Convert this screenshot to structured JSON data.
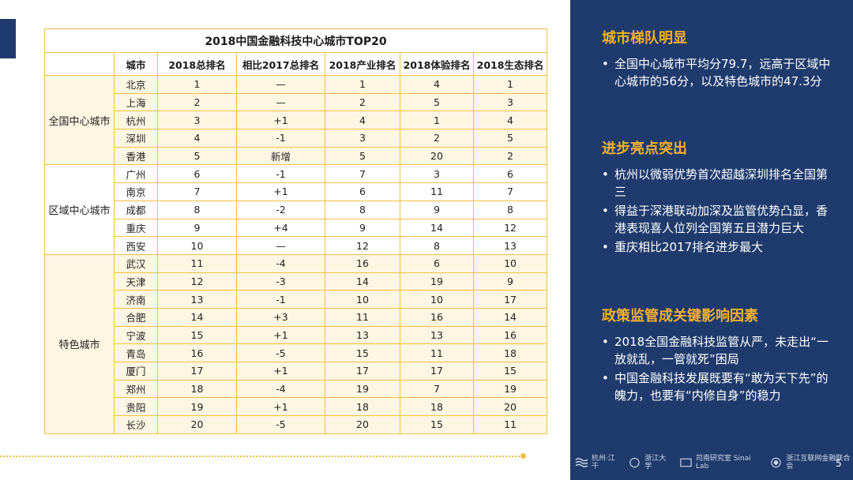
{
  "table": {
    "title": "2018中国金融科技中心城市TOP20",
    "headers": [
      "城市",
      "2018总排名",
      "相比2017总排名",
      "2018产业排名",
      "2018体验排名",
      "2018生态排名"
    ],
    "groups": [
      {
        "name": "全国中心城市",
        "rows": [
          [
            "北京",
            "1",
            "—",
            "1",
            "4",
            "1"
          ],
          [
            "上海",
            "2",
            "—",
            "2",
            "5",
            "3"
          ],
          [
            "杭州",
            "3",
            "+1",
            "4",
            "1",
            "4"
          ],
          [
            "深圳",
            "4",
            "-1",
            "3",
            "2",
            "5"
          ],
          [
            "香港",
            "5",
            "新增",
            "5",
            "20",
            "2"
          ]
        ]
      },
      {
        "name": "区域中心城市",
        "rows": [
          [
            "广州",
            "6",
            "-1",
            "7",
            "3",
            "6"
          ],
          [
            "南京",
            "7",
            "+1",
            "6",
            "11",
            "7"
          ],
          [
            "成都",
            "8",
            "-2",
            "8",
            "9",
            "8"
          ],
          [
            "重庆",
            "9",
            "+4",
            "9",
            "14",
            "12"
          ],
          [
            "西安",
            "10",
            "—",
            "12",
            "8",
            "13"
          ]
        ]
      },
      {
        "name": "特色城市",
        "rows": [
          [
            "武汉",
            "11",
            "-4",
            "16",
            "6",
            "10"
          ],
          [
            "天津",
            "12",
            "-3",
            "14",
            "19",
            "9"
          ],
          [
            "济南",
            "13",
            "-1",
            "10",
            "10",
            "17"
          ],
          [
            "合肥",
            "14",
            "+3",
            "11",
            "16",
            "14"
          ],
          [
            "宁波",
            "15",
            "+1",
            "13",
            "13",
            "16"
          ],
          [
            "青岛",
            "16",
            "-5",
            "15",
            "11",
            "18"
          ],
          [
            "厦门",
            "17",
            "+1",
            "17",
            "17",
            "15"
          ],
          [
            "郑州",
            "18",
            "-4",
            "19",
            "7",
            "19"
          ],
          [
            "贵阳",
            "19",
            "+1",
            "18",
            "18",
            "20"
          ],
          [
            "长沙",
            "20",
            "-5",
            "20",
            "15",
            "11"
          ]
        ]
      }
    ]
  },
  "sidebar": {
    "sections": [
      {
        "title": "城市梯队明显",
        "bullets": [
          "全国中心城市平均分79.7，远高于区域中心城市的56分，以及特色城市的47.3分"
        ]
      },
      {
        "title": "进步亮点突出",
        "bullets": [
          "杭州以微弱优势首次超越深圳排名全国第三",
          "得益于深港联动加深及监管优势凸显，香港表现喜人位列全国第五且潜力巨大",
          "重庆相比2017排名进步最大"
        ]
      },
      {
        "title": "政策监管成关键影响因素",
        "bullets": [
          "2018全国金融科技监管从严，未走出“一放就乱，一管就死”困局",
          "中国金融科技发展既要有“敢为天下先”的魄力，也要有“内修自身”的稳力"
        ]
      }
    ]
  },
  "footer": {
    "logos": [
      {
        "icon": "hangzhou-jianggan-logo-icon",
        "text": "杭州·江干"
      },
      {
        "icon": "zhejiang-university-logo-icon",
        "text": "浙江大学"
      },
      {
        "icon": "sinai-lab-logo-icon",
        "text": "司南研究室 Sinai Lab"
      },
      {
        "icon": "zhejiang-internet-finance-association-logo-icon",
        "text": "浙江互联网金融联合会"
      }
    ],
    "page_number": "5"
  },
  "colors": {
    "panel_bg": "#1f3b6d",
    "accent_gold": "#f3b02c",
    "table_border": "#f0c040",
    "group_shade": "#fdf6e3"
  }
}
